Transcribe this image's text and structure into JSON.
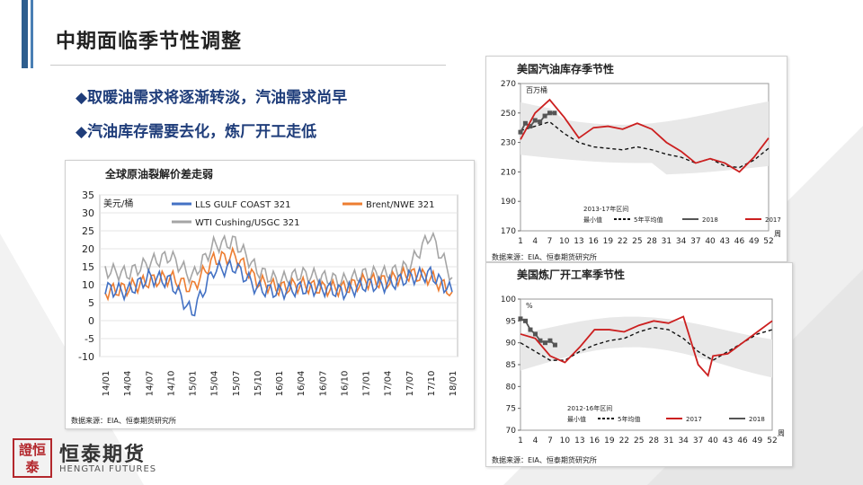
{
  "slide": {
    "title": "中期面临季节性调整",
    "bullets": [
      "◆取暖油需求将逐渐转淡，汽油需求尚早",
      "◆汽油库存需要去化，炼厂开工走低"
    ]
  },
  "logo": {
    "mark": "證恒泰",
    "name_cn": "恒泰期货",
    "name_en": "HENGTAI FUTURES"
  },
  "colors": {
    "accent": "#2e5e8e",
    "bullet": "#1f3d7a",
    "brand_red": "#b3282d"
  },
  "chart_data": [
    {
      "type": "line",
      "title": "全球原油裂解价差走弱",
      "ylabel": "美元/桶",
      "ylim": [
        -10,
        35
      ],
      "yticks": [
        -10,
        -5,
        0,
        5,
        10,
        15,
        20,
        25,
        30,
        35
      ],
      "categories": [
        "14/01",
        "14/04",
        "14/07",
        "14/10",
        "15/01",
        "15/04",
        "15/07",
        "15/10",
        "16/01",
        "16/04",
        "16/07",
        "16/10",
        "17/01",
        "17/04",
        "17/07",
        "17/10",
        "18/01"
      ],
      "series": [
        {
          "name": "LLS GULF COAST 321",
          "color": "#4472c4",
          "values": [
            9,
            8,
            12,
            11,
            2,
            14,
            15,
            9,
            8,
            9,
            9,
            8,
            10,
            10,
            12,
            13,
            8
          ]
        },
        {
          "name": "Brent/NWE 321",
          "color": "#ed7d31",
          "values": [
            8,
            9,
            11,
            12,
            9,
            17,
            18,
            11,
            9,
            10,
            9,
            9,
            11,
            11,
            13,
            12,
            8
          ]
        },
        {
          "name": "WTI Cushing/USGC 321",
          "color": "#a5a5a5",
          "values": [
            14,
            13,
            16,
            18,
            12,
            21,
            22,
            14,
            11,
            13,
            12,
            11,
            13,
            13,
            15,
            24,
            12
          ]
        }
      ],
      "source": "数据来源：EIA、恒泰期货研究所"
    },
    {
      "type": "line",
      "title": "美国汽油库存季节性",
      "ylabel": "百万桶",
      "ylim": [
        170,
        270
      ],
      "yticks": [
        170,
        190,
        210,
        230,
        250,
        270
      ],
      "xticks": [
        1,
        4,
        7,
        10,
        13,
        16,
        19,
        22,
        25,
        28,
        31,
        34,
        37,
        40,
        43,
        46,
        49,
        52
      ],
      "xunit": "周",
      "band_label": "2013-17年区间",
      "legend": [
        "最小值",
        "5年平均值",
        "2018",
        "2017"
      ],
      "series": [
        {
          "name": "5年平均值",
          "color": "#111111",
          "x": [
            1,
            4,
            7,
            10,
            13,
            16,
            19,
            22,
            25,
            28,
            31,
            34,
            37,
            40,
            43,
            46,
            49,
            52
          ],
          "values": [
            238,
            241,
            244,
            236,
            230,
            227,
            226,
            225,
            227,
            225,
            222,
            220,
            216,
            219,
            214,
            213,
            218,
            226
          ]
        },
        {
          "name": "2018",
          "color": "#555555",
          "x": [
            1,
            2,
            3,
            4,
            5,
            6,
            7,
            8
          ],
          "values": [
            237,
            243,
            241,
            245,
            244,
            248,
            250,
            250
          ]
        },
        {
          "name": "2017",
          "color": "#cc1f1f",
          "x": [
            1,
            4,
            7,
            10,
            13,
            16,
            19,
            22,
            25,
            28,
            31,
            34,
            37,
            40,
            43,
            46,
            49,
            52
          ],
          "values": [
            232,
            250,
            259,
            247,
            233,
            240,
            241,
            239,
            243,
            239,
            230,
            224,
            216,
            219,
            216,
            210,
            220,
            233
          ]
        }
      ],
      "source": "数据来源：EIA、恒泰期货研究所"
    },
    {
      "type": "line",
      "title": "美国炼厂开工率季节性",
      "ylabel": "%",
      "ylim": [
        70,
        100
      ],
      "yticks": [
        70,
        75,
        80,
        85,
        90,
        95,
        100
      ],
      "xticks": [
        1,
        4,
        7,
        10,
        13,
        16,
        19,
        22,
        25,
        28,
        31,
        34,
        37,
        40,
        43,
        46,
        49,
        52
      ],
      "xunit": "周",
      "band_label": "2012-16年区间",
      "legend": [
        "最小值",
        "5年均值",
        "2017",
        "2018"
      ],
      "series": [
        {
          "name": "5年均值",
          "color": "#111111",
          "x": [
            1,
            4,
            7,
            10,
            13,
            16,
            19,
            22,
            25,
            28,
            31,
            34,
            37,
            40,
            43,
            46,
            49,
            52
          ],
          "values": [
            90,
            88,
            86,
            86,
            88,
            89.5,
            90.5,
            91,
            92.5,
            93.5,
            93,
            91,
            88,
            86,
            88,
            90,
            92,
            93
          ]
        },
        {
          "name": "2018",
          "color": "#555555",
          "x": [
            1,
            2,
            3,
            4,
            5,
            6,
            7,
            8
          ],
          "values": [
            95.5,
            95,
            93,
            92,
            90.5,
            90,
            90.5,
            89.5
          ]
        },
        {
          "name": "2017",
          "color": "#cc1f1f",
          "x": [
            1,
            4,
            7,
            10,
            13,
            16,
            19,
            22,
            25,
            28,
            31,
            34,
            37,
            39,
            40,
            43,
            46,
            49,
            52
          ],
          "values": [
            92,
            91,
            87,
            85.5,
            89,
            93,
            93,
            92.5,
            94,
            95,
            94.5,
            96,
            85,
            82.5,
            87,
            87.5,
            90,
            92.5,
            95
          ]
        }
      ],
      "source": "数据来源：EIA、恒泰期货研究所"
    }
  ]
}
